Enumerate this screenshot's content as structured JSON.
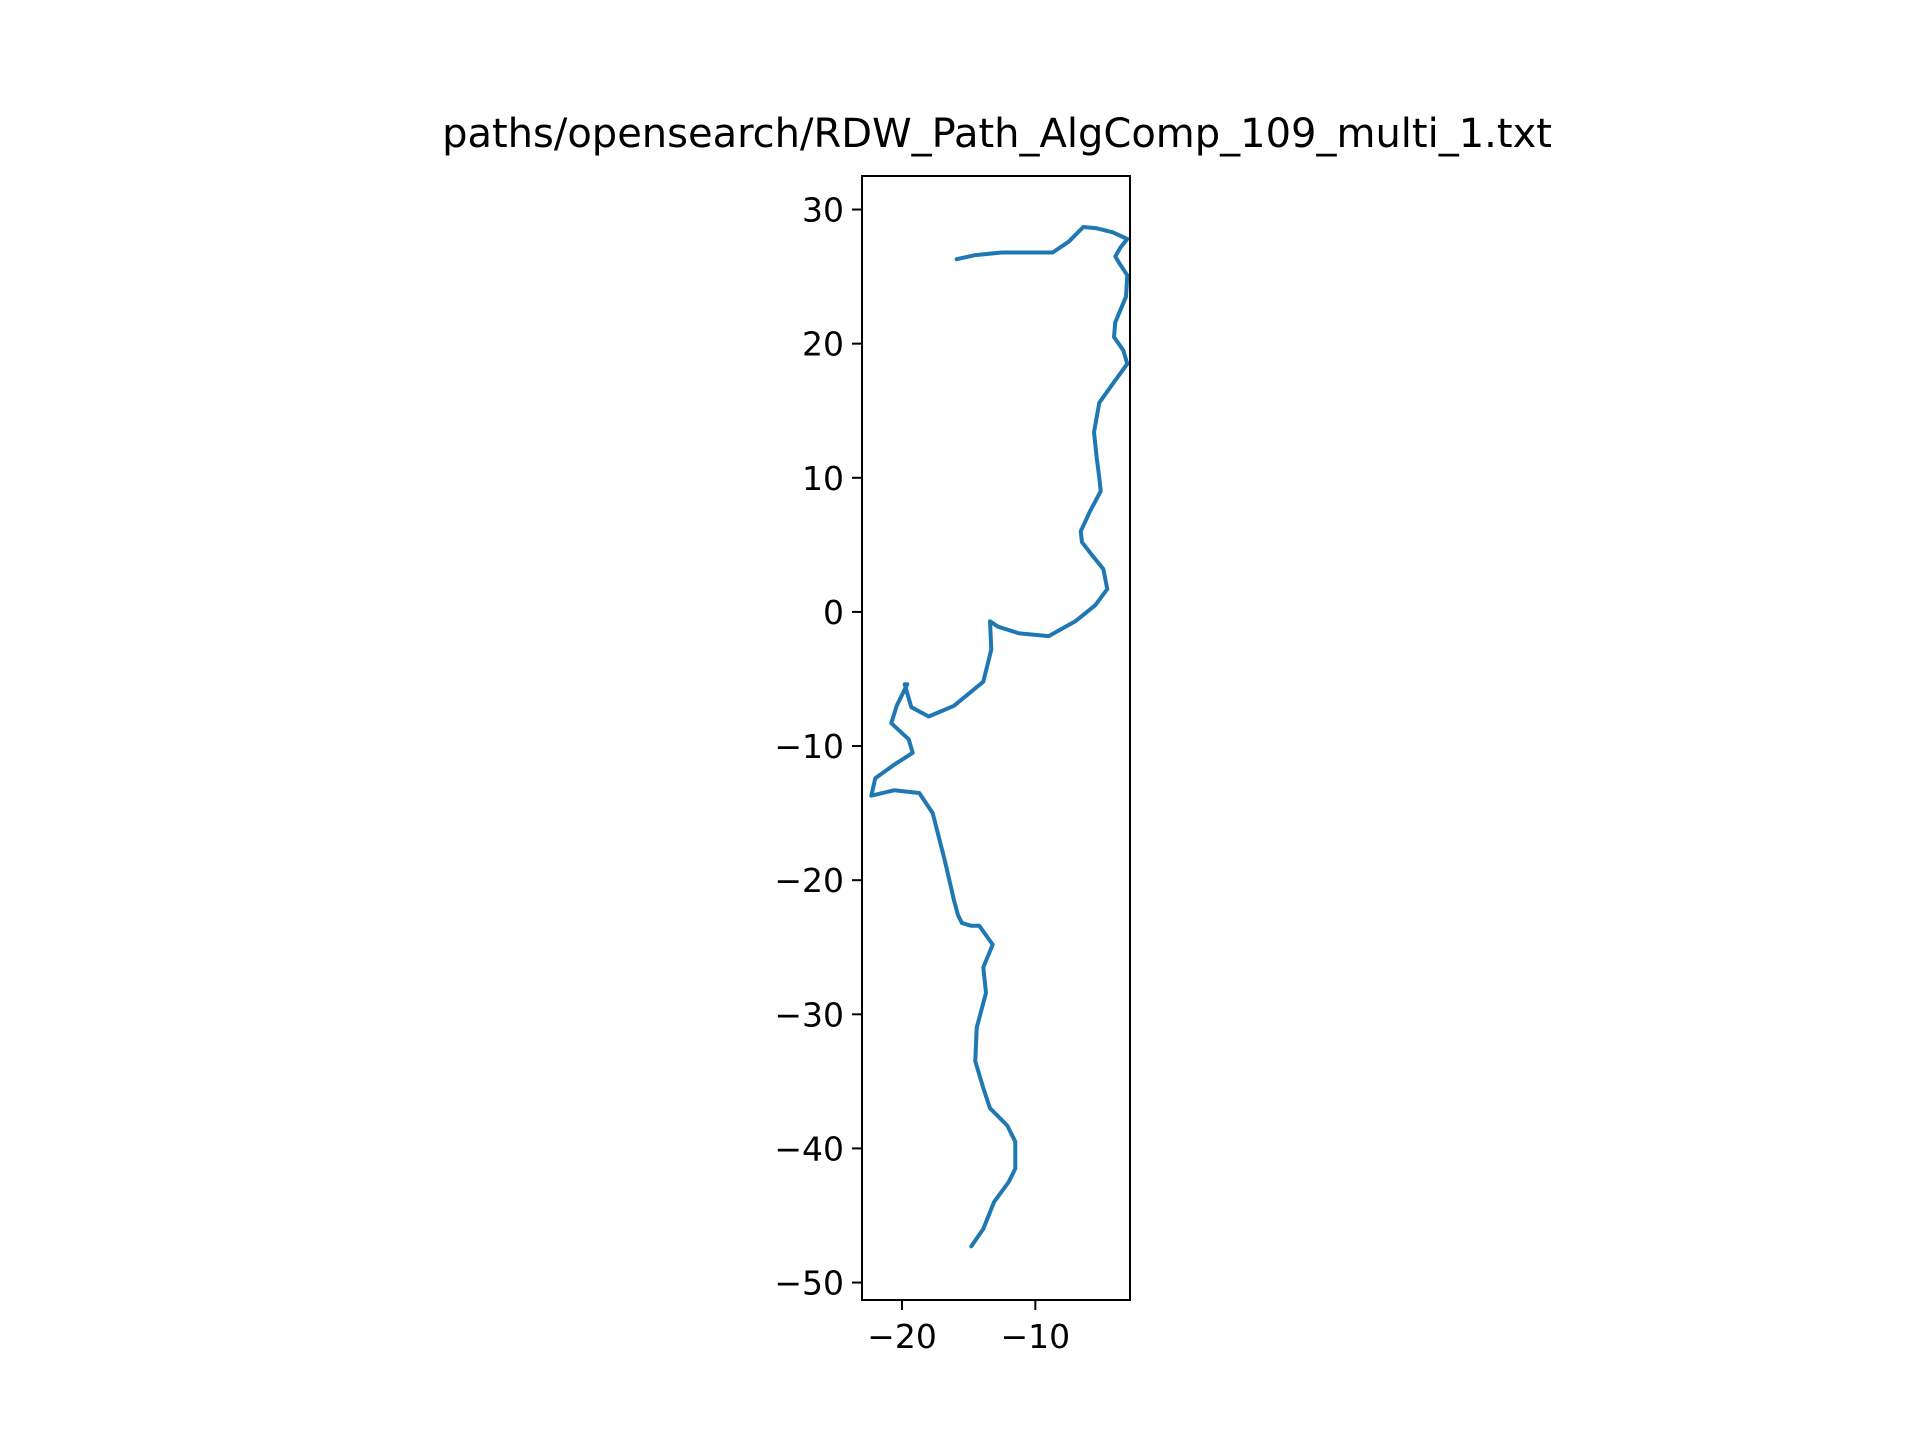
{
  "chart_data": {
    "type": "line",
    "title": "paths/opensearch/RDW_Path_AlgComp_109_multi_1.txt",
    "xlabel": "",
    "ylabel": "",
    "xlim": [
      -23.0,
      -2.9
    ],
    "ylim": [
      -51.3,
      32.5
    ],
    "x_ticks": [
      -20,
      -10
    ],
    "x_tick_labels": [
      "−20",
      "−10"
    ],
    "y_ticks": [
      30,
      20,
      10,
      0,
      -10,
      -20,
      -30,
      -40,
      -50
    ],
    "y_tick_labels": [
      "30",
      "20",
      "10",
      "0",
      "−10",
      "−20",
      "−30",
      "−40",
      "−50"
    ],
    "grid": false,
    "line_color": "#1f77b4",
    "series": [
      {
        "x": [
          -15.9,
          -14.5,
          -12.5,
          -10.0,
          -8.7,
          -7.5,
          -6.4,
          -5.4,
          -4.2,
          -3.1,
          -3.6,
          -4.0,
          -3.7,
          -3.1,
          -3.2,
          -4.0,
          -4.1,
          -3.4,
          -3.1,
          -4.2,
          -5.2,
          -5.6,
          -5.4,
          -5.2,
          -5.1,
          -5.9,
          -6.6,
          -6.5,
          -5.8,
          -4.9,
          -4.6,
          -5.5,
          -7.0,
          -9.0,
          -11.2,
          -12.8,
          -13.4,
          -13.3,
          -13.9,
          -16.1,
          -18.0,
          -19.3,
          -19.8,
          -19.6,
          -20.4,
          -20.8,
          -19.5,
          -19.2,
          -20.6,
          -22.0,
          -22.3,
          -20.6,
          -18.7,
          -17.7,
          -16.8,
          -16.1,
          -15.8,
          -15.5,
          -14.8,
          -14.2,
          -13.2,
          -13.9,
          -13.7,
          -14.4,
          -14.5,
          -13.9,
          -13.4,
          -12.1,
          -11.5,
          -11.5,
          -12.0,
          -13.1,
          -13.9,
          -14.8
        ],
        "y": [
          26.3,
          26.6,
          26.8,
          26.8,
          26.8,
          27.6,
          28.7,
          28.6,
          28.3,
          27.8,
          27.2,
          26.5,
          26.0,
          25.1,
          23.5,
          21.6,
          20.5,
          19.5,
          18.5,
          17.0,
          15.6,
          13.4,
          11.5,
          10.0,
          9.0,
          7.5,
          6.0,
          5.2,
          4.3,
          3.2,
          1.7,
          0.5,
          -0.7,
          -1.8,
          -1.6,
          -1.1,
          -0.7,
          -2.8,
          -5.2,
          -7.0,
          -7.8,
          -7.1,
          -5.4,
          -5.4,
          -7.0,
          -8.3,
          -9.5,
          -10.5,
          -11.4,
          -12.4,
          -13.7,
          -13.3,
          -13.5,
          -15.0,
          -18.5,
          -21.5,
          -22.6,
          -23.2,
          -23.4,
          -23.4,
          -24.8,
          -26.5,
          -28.4,
          -31.0,
          -33.5,
          -35.5,
          -37.0,
          -38.3,
          -39.5,
          -41.5,
          -42.5,
          -44.0,
          -46.0,
          -47.3
        ]
      }
    ]
  }
}
